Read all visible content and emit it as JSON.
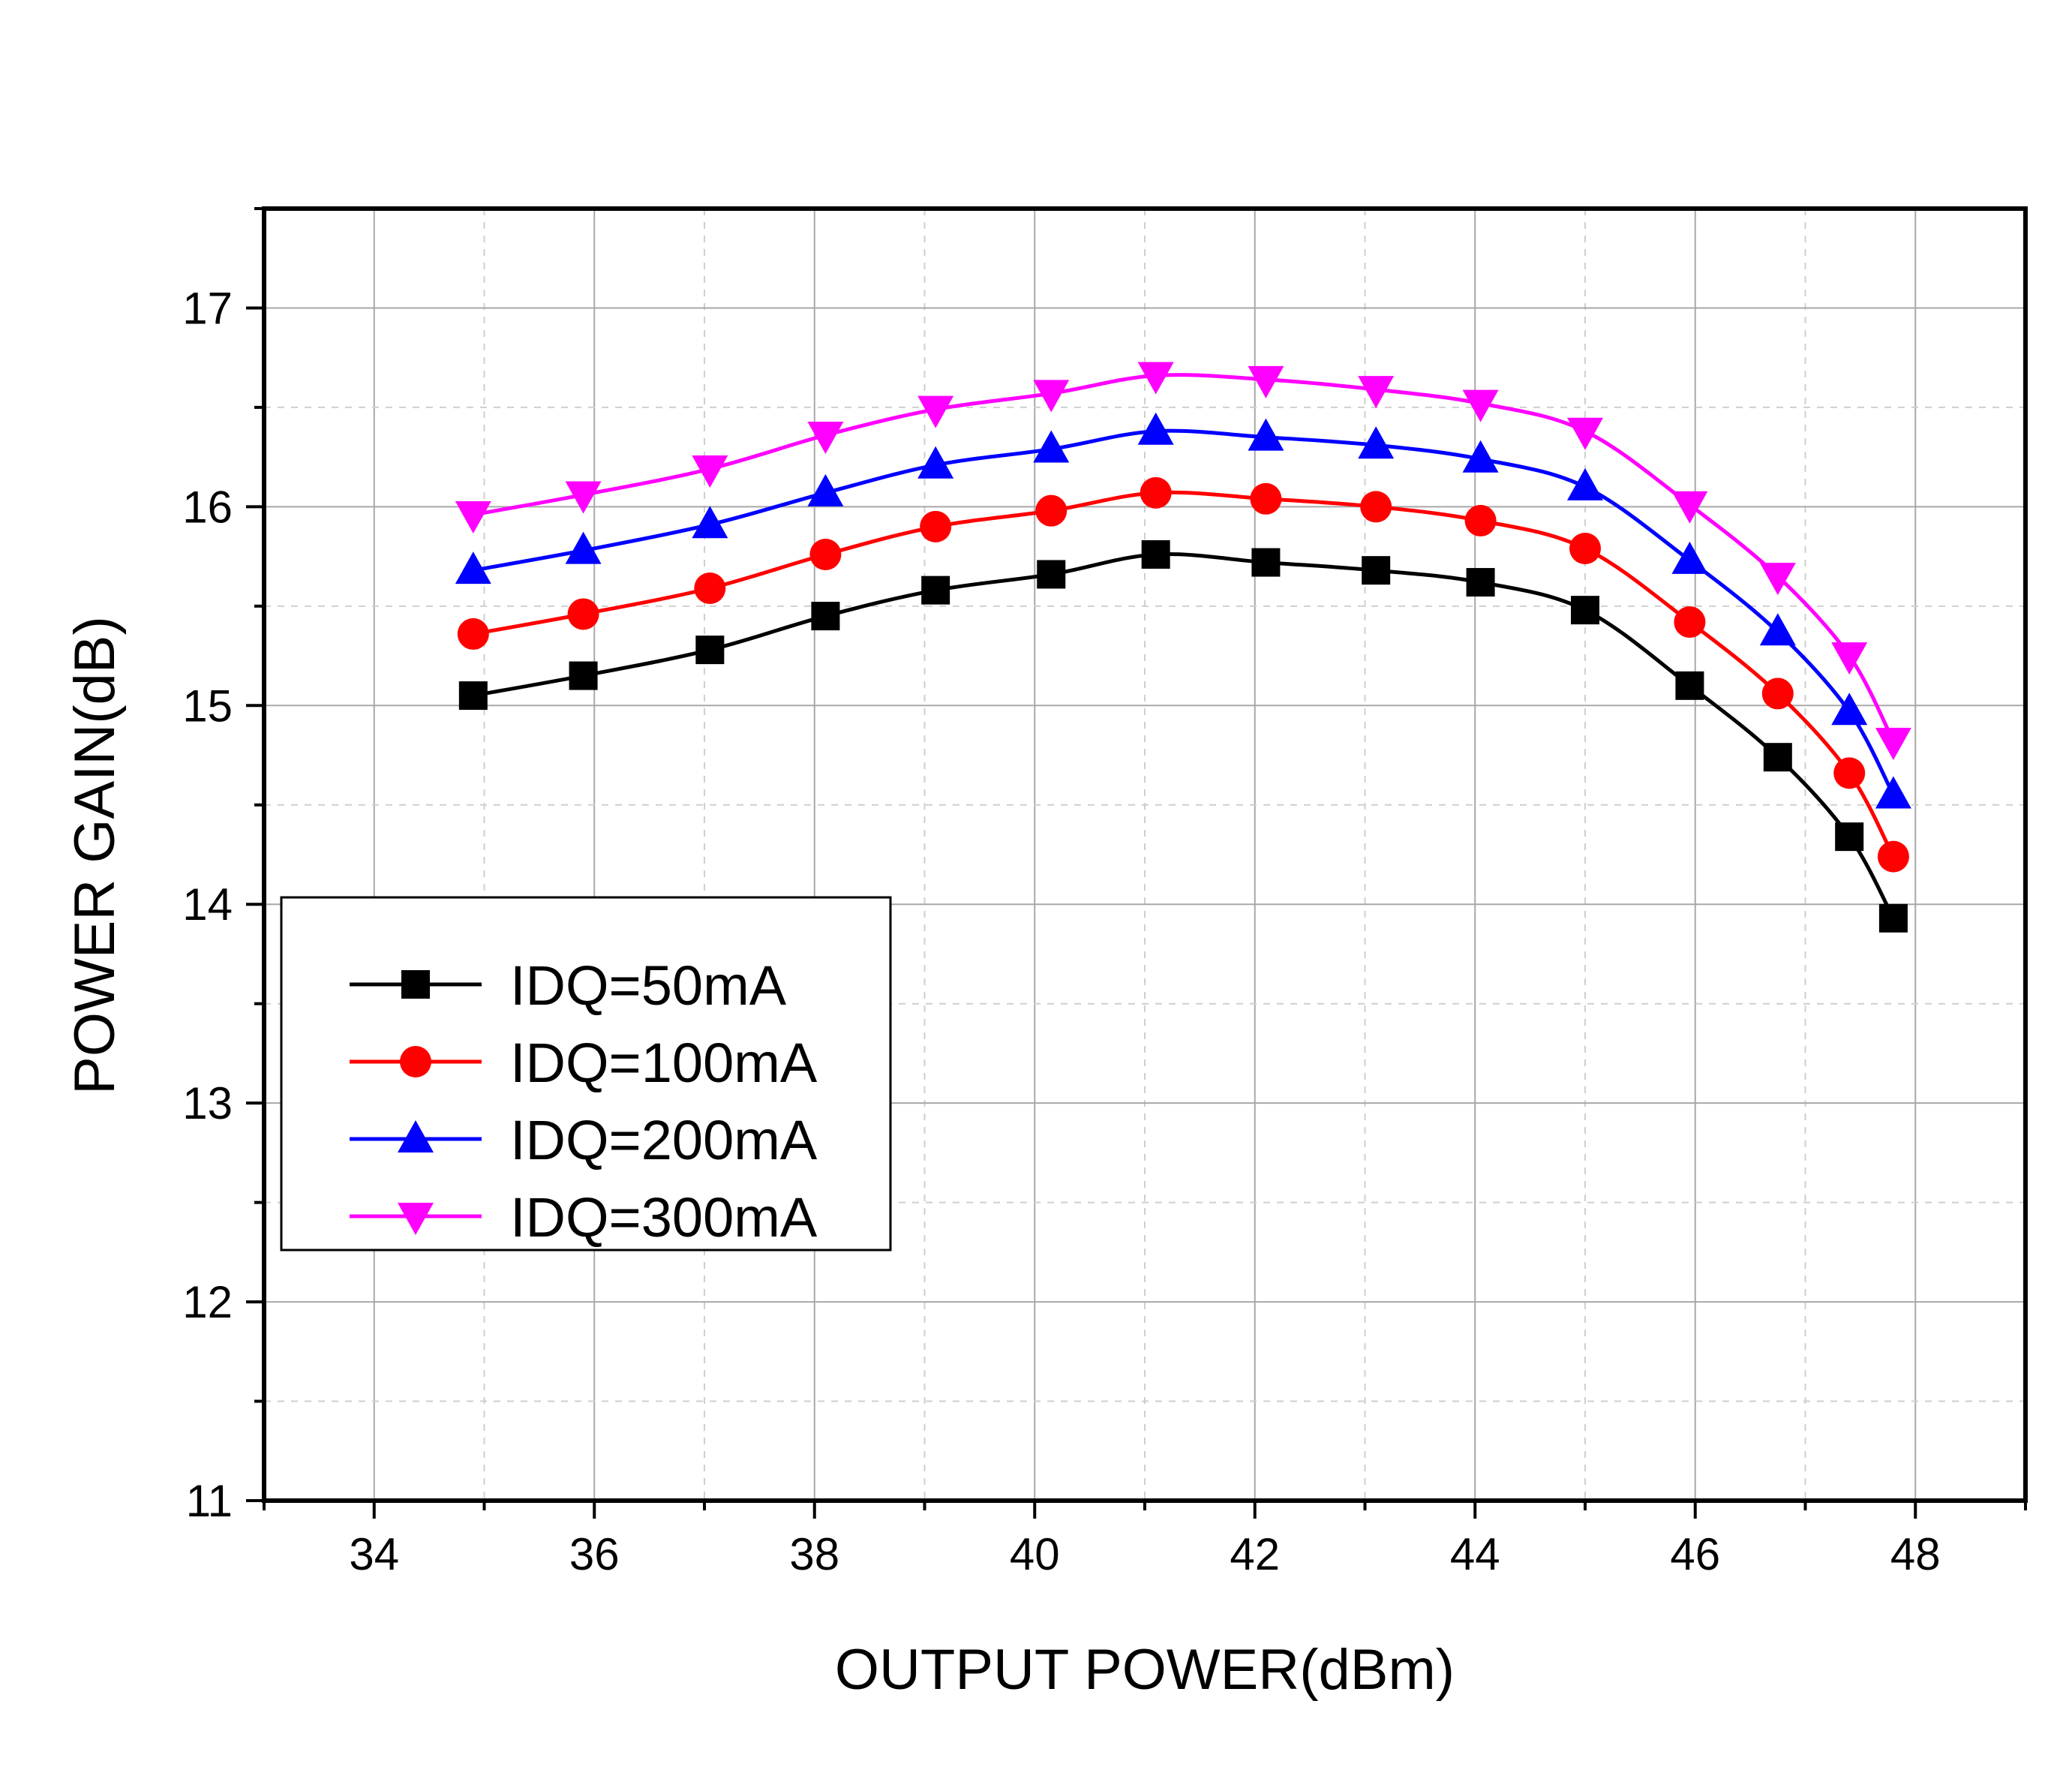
{
  "chart_data": {
    "type": "line",
    "title": "",
    "xlabel": "OUTPUT POWER(dBm)",
    "ylabel": "POWER GAIN(dB)",
    "xlim": [
      33,
      49
    ],
    "ylim": [
      11,
      17.5
    ],
    "xticks": [
      34,
      36,
      38,
      40,
      42,
      44,
      46,
      48
    ],
    "yticks": [
      11,
      12,
      13,
      14,
      15,
      16,
      17
    ],
    "grid": true,
    "legend_position": "lower-left",
    "series": [
      {
        "name": "IDQ=50mA",
        "color": "#000000",
        "marker": "square",
        "x": [
          34.9,
          35.9,
          37.05,
          38.1,
          39.1,
          40.15,
          41.1,
          42.1,
          43.1,
          44.05,
          45.0,
          45.95,
          46.75,
          47.4,
          47.8
        ],
        "y": [
          15.05,
          15.15,
          15.28,
          15.45,
          15.58,
          15.66,
          15.76,
          15.72,
          15.68,
          15.62,
          15.48,
          15.1,
          14.74,
          14.34,
          13.93
        ]
      },
      {
        "name": "IDQ=100mA",
        "color": "#ff0000",
        "marker": "circle",
        "x": [
          34.9,
          35.9,
          37.05,
          38.1,
          39.1,
          40.15,
          41.1,
          42.1,
          43.1,
          44.05,
          45.0,
          45.95,
          46.75,
          47.4,
          47.8
        ],
        "y": [
          15.36,
          15.46,
          15.59,
          15.76,
          15.9,
          15.98,
          16.07,
          16.04,
          16.0,
          15.93,
          15.79,
          15.42,
          15.06,
          14.66,
          14.24
        ]
      },
      {
        "name": "IDQ=200mA",
        "color": "#0000ff",
        "marker": "triangle-up",
        "x": [
          34.9,
          35.9,
          37.05,
          38.1,
          39.1,
          40.15,
          41.1,
          42.1,
          43.1,
          44.05,
          45.0,
          45.95,
          46.75,
          47.4,
          47.8
        ],
        "y": [
          15.68,
          15.78,
          15.91,
          16.07,
          16.21,
          16.29,
          16.38,
          16.35,
          16.31,
          16.24,
          16.1,
          15.73,
          15.37,
          14.97,
          14.55
        ]
      },
      {
        "name": "IDQ=300mA",
        "color": "#ff00ff",
        "marker": "triangle-down",
        "x": [
          34.9,
          35.9,
          37.05,
          38.1,
          39.1,
          40.15,
          41.1,
          42.1,
          43.1,
          44.05,
          45.0,
          45.95,
          46.75,
          47.4,
          47.8
        ],
        "y": [
          15.96,
          16.06,
          16.19,
          16.36,
          16.49,
          16.57,
          16.66,
          16.64,
          16.59,
          16.52,
          16.38,
          16.01,
          15.65,
          15.25,
          14.82
        ]
      }
    ]
  }
}
